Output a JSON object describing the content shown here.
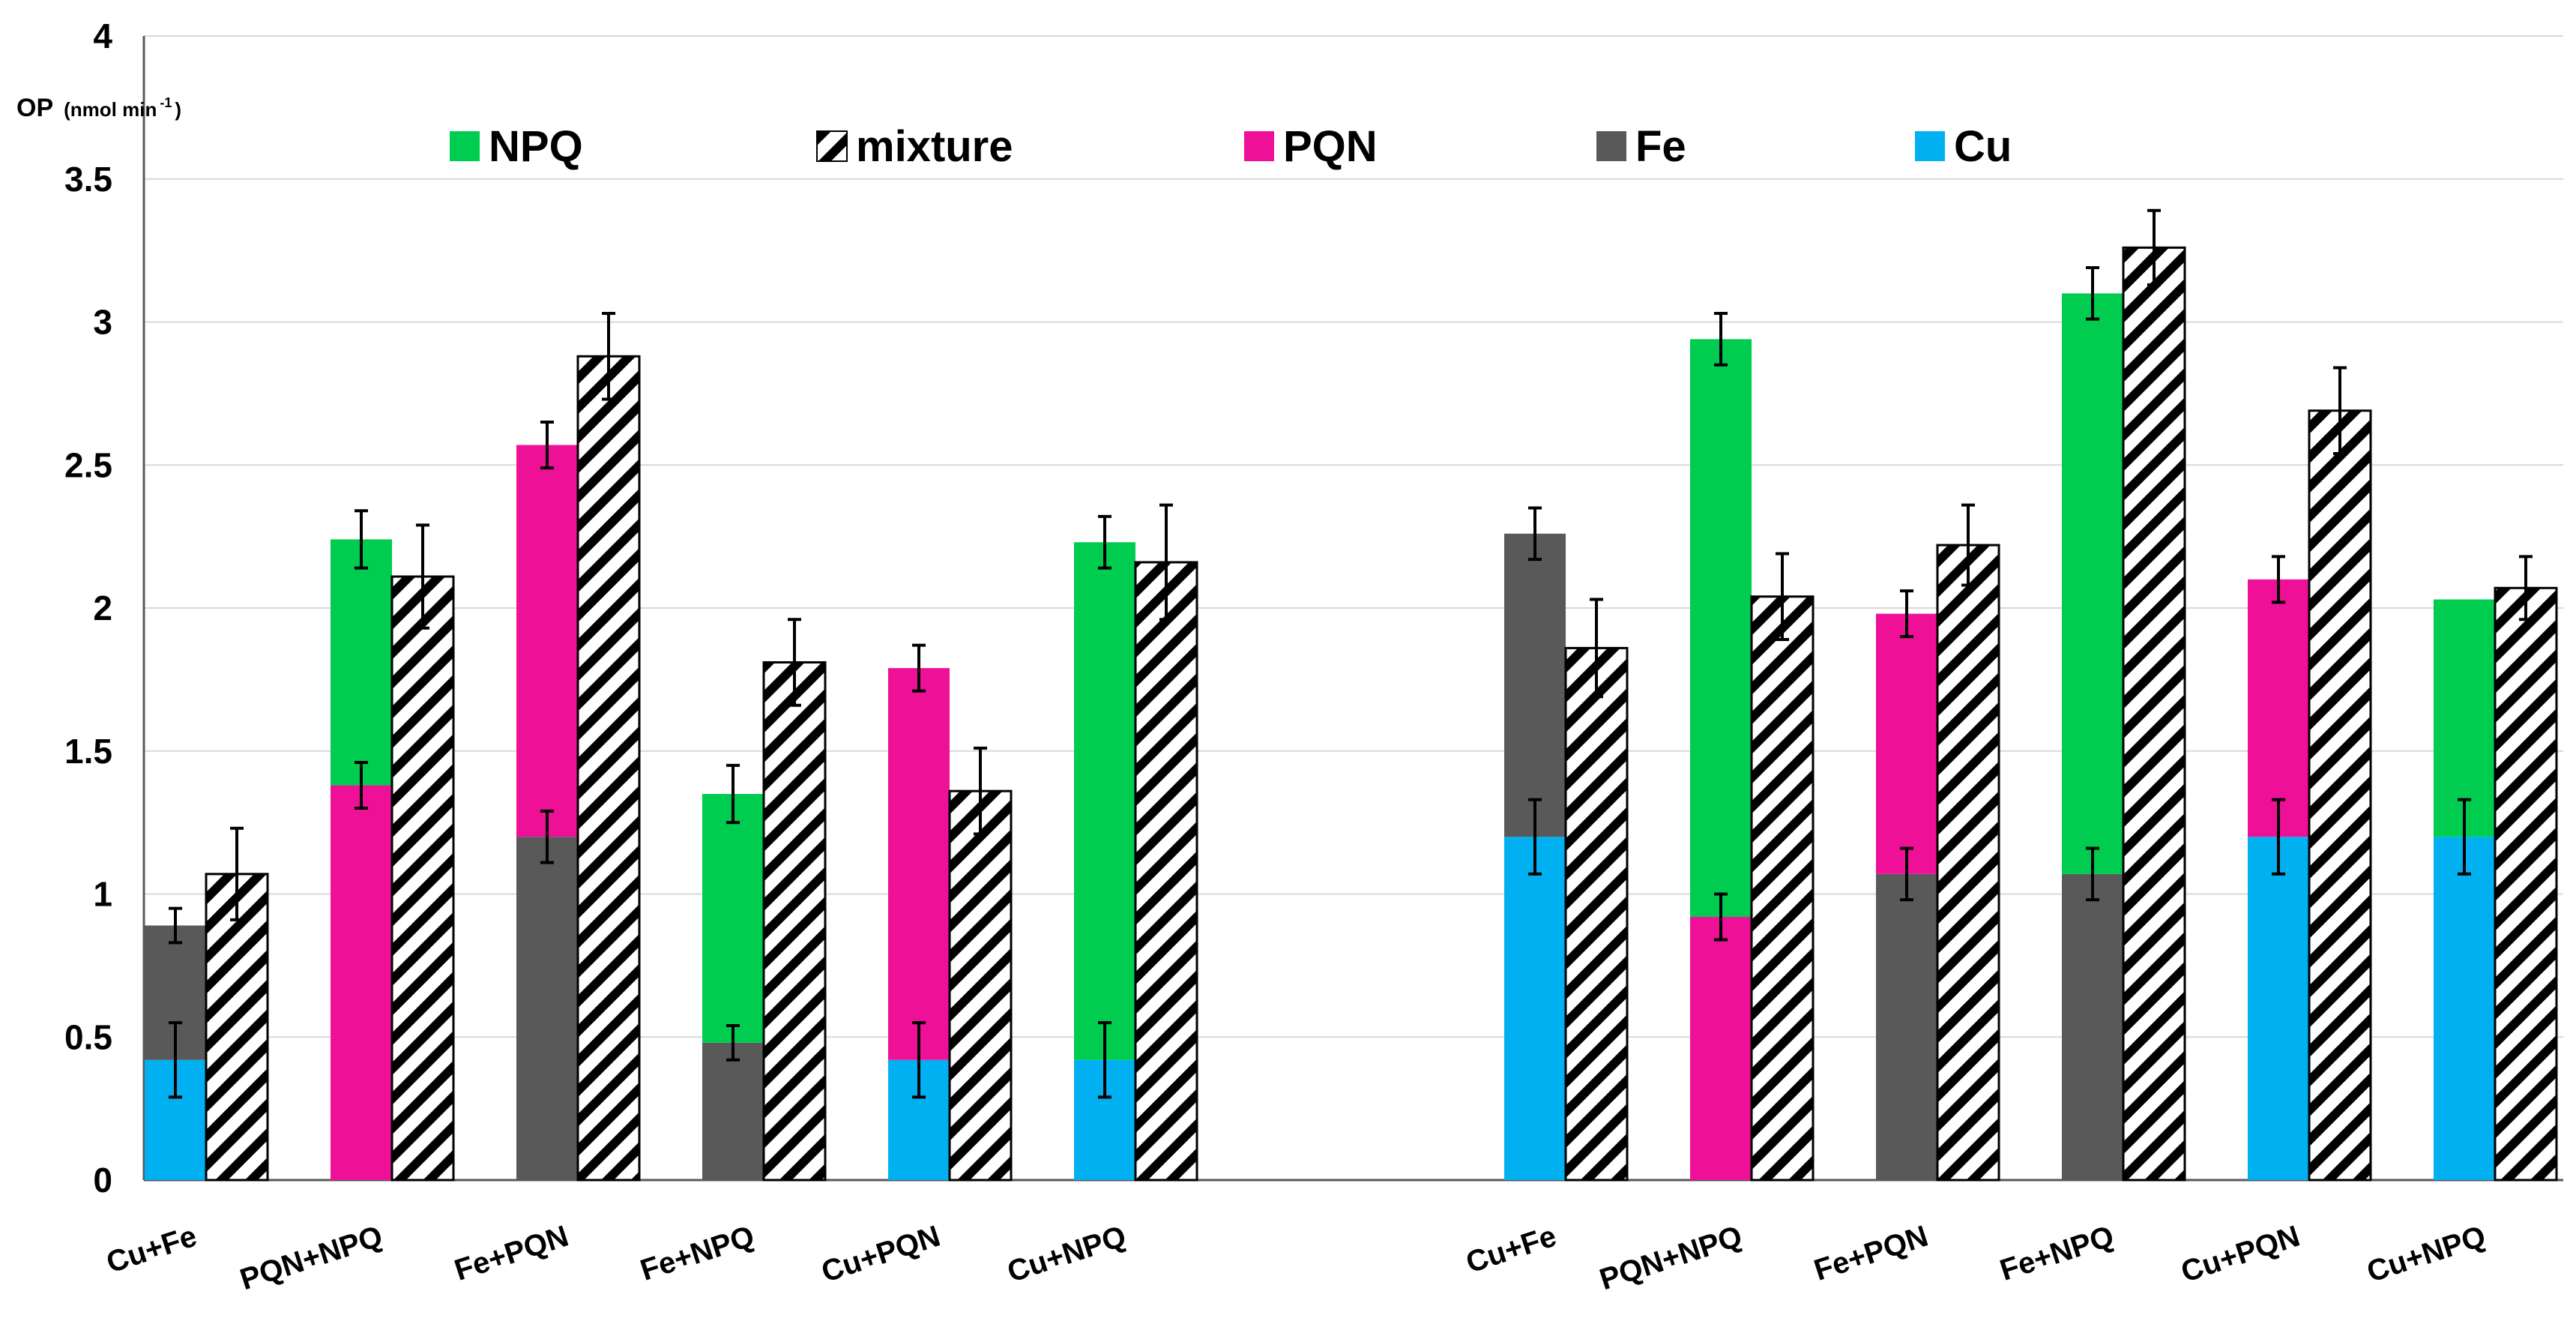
{
  "chart_data": {
    "type": "bar",
    "subtype": "stacked-bar-with-mixture-comparison",
    "ylabel": "OP",
    "ylabel_unit": "(nmol min",
    "ylabel_unit_sup": "-1",
    "ylabel_unit_close": ")",
    "ylim": [
      0,
      4
    ],
    "yticks": [
      0,
      0.5,
      1,
      1.5,
      2,
      2.5,
      3,
      3.5,
      4
    ],
    "ytick_labels": [
      "0",
      "0.5",
      "1",
      "1.5",
      "2",
      "2.5",
      "3",
      "3.5",
      "4"
    ],
    "grid": true,
    "legend": [
      {
        "name": "NPQ",
        "color": "#00cc50",
        "pattern": "solid"
      },
      {
        "name": "mixture",
        "color": "#ffffff",
        "pattern": "hatch"
      },
      {
        "name": "PQN",
        "color": "#ee1096",
        "pattern": "solid"
      },
      {
        "name": "Fe",
        "color": "#595959",
        "pattern": "solid"
      },
      {
        "name": "Cu",
        "color": "#00b0f0",
        "pattern": "solid"
      }
    ],
    "colors": {
      "NPQ": "#00cc50",
      "PQN": "#ee1096",
      "Fe": "#595959",
      "Cu": "#00b0f0",
      "mixture_stroke": "#000000",
      "grid": "#d9d9d9",
      "axis": "#595959"
    },
    "groups": [
      {
        "label": "Cu+Fe",
        "stack": [
          {
            "component": "Cu",
            "value": 0.42,
            "err": 0.13
          },
          {
            "component": "Fe",
            "value": 0.47,
            "err": 0.06
          }
        ],
        "mixture": {
          "value": 1.07,
          "err": 0.16
        }
      },
      {
        "label": "PQN+NPQ",
        "stack": [
          {
            "component": "PQN",
            "value": 1.38,
            "err": 0.08
          },
          {
            "component": "NPQ",
            "value": 0.86,
            "err": 0.1
          }
        ],
        "mixture": {
          "value": 2.11,
          "err": 0.18
        }
      },
      {
        "label": "Fe+PQN",
        "stack": [
          {
            "component": "Fe",
            "value": 1.2,
            "err": 0.09
          },
          {
            "component": "PQN",
            "value": 1.37,
            "err": 0.08
          }
        ],
        "mixture": {
          "value": 2.88,
          "err": 0.15
        }
      },
      {
        "label": "Fe+NPQ",
        "stack": [
          {
            "component": "Fe",
            "value": 0.48,
            "err": 0.06
          },
          {
            "component": "NPQ",
            "value": 0.87,
            "err": 0.1
          }
        ],
        "mixture": {
          "value": 1.81,
          "err": 0.15
        }
      },
      {
        "label": "Cu+PQN",
        "stack": [
          {
            "component": "Cu",
            "value": 0.42,
            "err": 0.13
          },
          {
            "component": "PQN",
            "value": 1.37,
            "err": 0.08
          }
        ],
        "mixture": {
          "value": 1.36,
          "err": 0.15
        }
      },
      {
        "label": "Cu+NPQ",
        "stack": [
          {
            "component": "Cu",
            "value": 0.42,
            "err": 0.13
          },
          {
            "component": "NPQ",
            "value": 1.81,
            "err": 0.09
          }
        ],
        "mixture": {
          "value": 2.16,
          "err": 0.2
        }
      },
      {
        "label": "Cu+Fe",
        "stack": [
          {
            "component": "Cu",
            "value": 1.2,
            "err": 0.13
          },
          {
            "component": "Fe",
            "value": 1.06,
            "err": 0.09
          }
        ],
        "mixture": {
          "value": 1.86,
          "err": 0.17
        }
      },
      {
        "label": "PQN+NPQ",
        "stack": [
          {
            "component": "PQN",
            "value": 0.92,
            "err": 0.08
          },
          {
            "component": "NPQ",
            "value": 2.02,
            "err": 0.09
          }
        ],
        "mixture": {
          "value": 2.04,
          "err": 0.15
        }
      },
      {
        "label": "Fe+PQN",
        "stack": [
          {
            "component": "Fe",
            "value": 1.07,
            "err": 0.09
          },
          {
            "component": "PQN",
            "value": 0.91,
            "err": 0.08
          }
        ],
        "mixture": {
          "value": 2.22,
          "err": 0.14
        }
      },
      {
        "label": "Fe+NPQ",
        "stack": [
          {
            "component": "Fe",
            "value": 1.07,
            "err": 0.09
          },
          {
            "component": "NPQ",
            "value": 2.03,
            "err": 0.09
          }
        ],
        "mixture": {
          "value": 3.26,
          "err": 0.13
        }
      },
      {
        "label": "Cu+PQN",
        "stack": [
          {
            "component": "Cu",
            "value": 1.2,
            "err": 0.13
          },
          {
            "component": "PQN",
            "value": 0.9,
            "err": 0.08
          }
        ],
        "mixture": {
          "value": 2.69,
          "err": 0.15
        }
      },
      {
        "label": "Cu+NPQ",
        "stack": [
          {
            "component": "Cu",
            "value": 1.2,
            "err": 0.13
          },
          {
            "component": "NPQ",
            "value": 0.83,
            "err": null
          }
        ],
        "mixture": {
          "value": 2.07,
          "err": 0.11
        }
      }
    ]
  }
}
